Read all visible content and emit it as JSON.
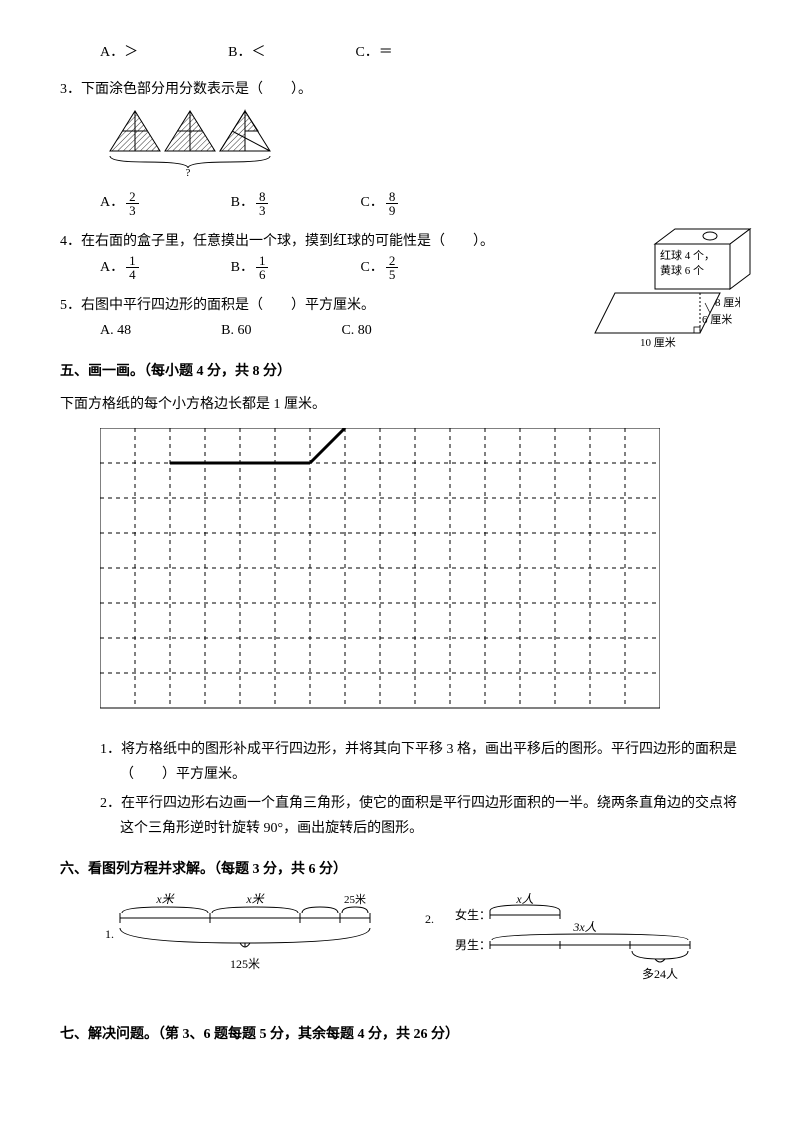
{
  "q2top": {
    "options": [
      {
        "label": "A．＞"
      },
      {
        "label": "B．＜"
      },
      {
        "label": "C．＝"
      }
    ]
  },
  "q3": {
    "text": "3．下面涂色部分用分数表示是（　　）。",
    "options": [
      {
        "label": "A．",
        "num": "2",
        "den": "3"
      },
      {
        "label": "B．",
        "num": "8",
        "den": "3"
      },
      {
        "label": "C．",
        "num": "8",
        "den": "9"
      }
    ],
    "brace_label": "?"
  },
  "q4": {
    "text": "4．在右面的盒子里，任意摸出一个球，摸到红球的可能性是（　　）。",
    "options": [
      {
        "label": "A．",
        "num": "1",
        "den": "4"
      },
      {
        "label": "B．",
        "num": "1",
        "den": "6"
      },
      {
        "label": "C．",
        "num": "2",
        "den": "5"
      }
    ],
    "box": {
      "line1": "红球 4 个，",
      "line2": "黄球 6 个"
    }
  },
  "q5": {
    "text": "5．右图中平行四边形的面积是（　　）平方厘米。",
    "options": [
      {
        "label": "A. 48"
      },
      {
        "label": "B. 60"
      },
      {
        "label": "C. 80"
      }
    ],
    "labels": {
      "side": "8 厘米",
      "height": "6 厘米",
      "base": "10 厘米"
    }
  },
  "section5": {
    "title": "五、画一画。（每小题 4 分，共 8 分）",
    "intro": "下面方格纸的每个小方格边长都是 1 厘米。",
    "sub1": "1．将方格纸中的图形补成平行四边形，并将其向下平移 3 格，画出平移后的图形。平行四边形的面积是（　　）平方厘米。",
    "sub2": "2．在平行四边形右边画一个直角三角形，使它的面积是平行四边形面积的一半。绕两条直角边的交点将这个三角形逆时针旋转 90°，画出旋转后的图形。",
    "grid": {
      "cols": 16,
      "rows": 8
    }
  },
  "section6": {
    "title": "六、看图列方程并求解。（每题 3 分，共 6 分）",
    "d1": {
      "seg": "x米",
      "extra": "25米",
      "total": "125米",
      "num": "1."
    },
    "d2": {
      "top_label": "x人",
      "left1": "女生：",
      "left2": "男生：",
      "mid": "3x人",
      "extra": "多24人",
      "num": "2."
    }
  },
  "section7": {
    "title": "七、解决问题。（第 3、6 题每题 5 分，其余每题 4 分，共 26 分）"
  }
}
